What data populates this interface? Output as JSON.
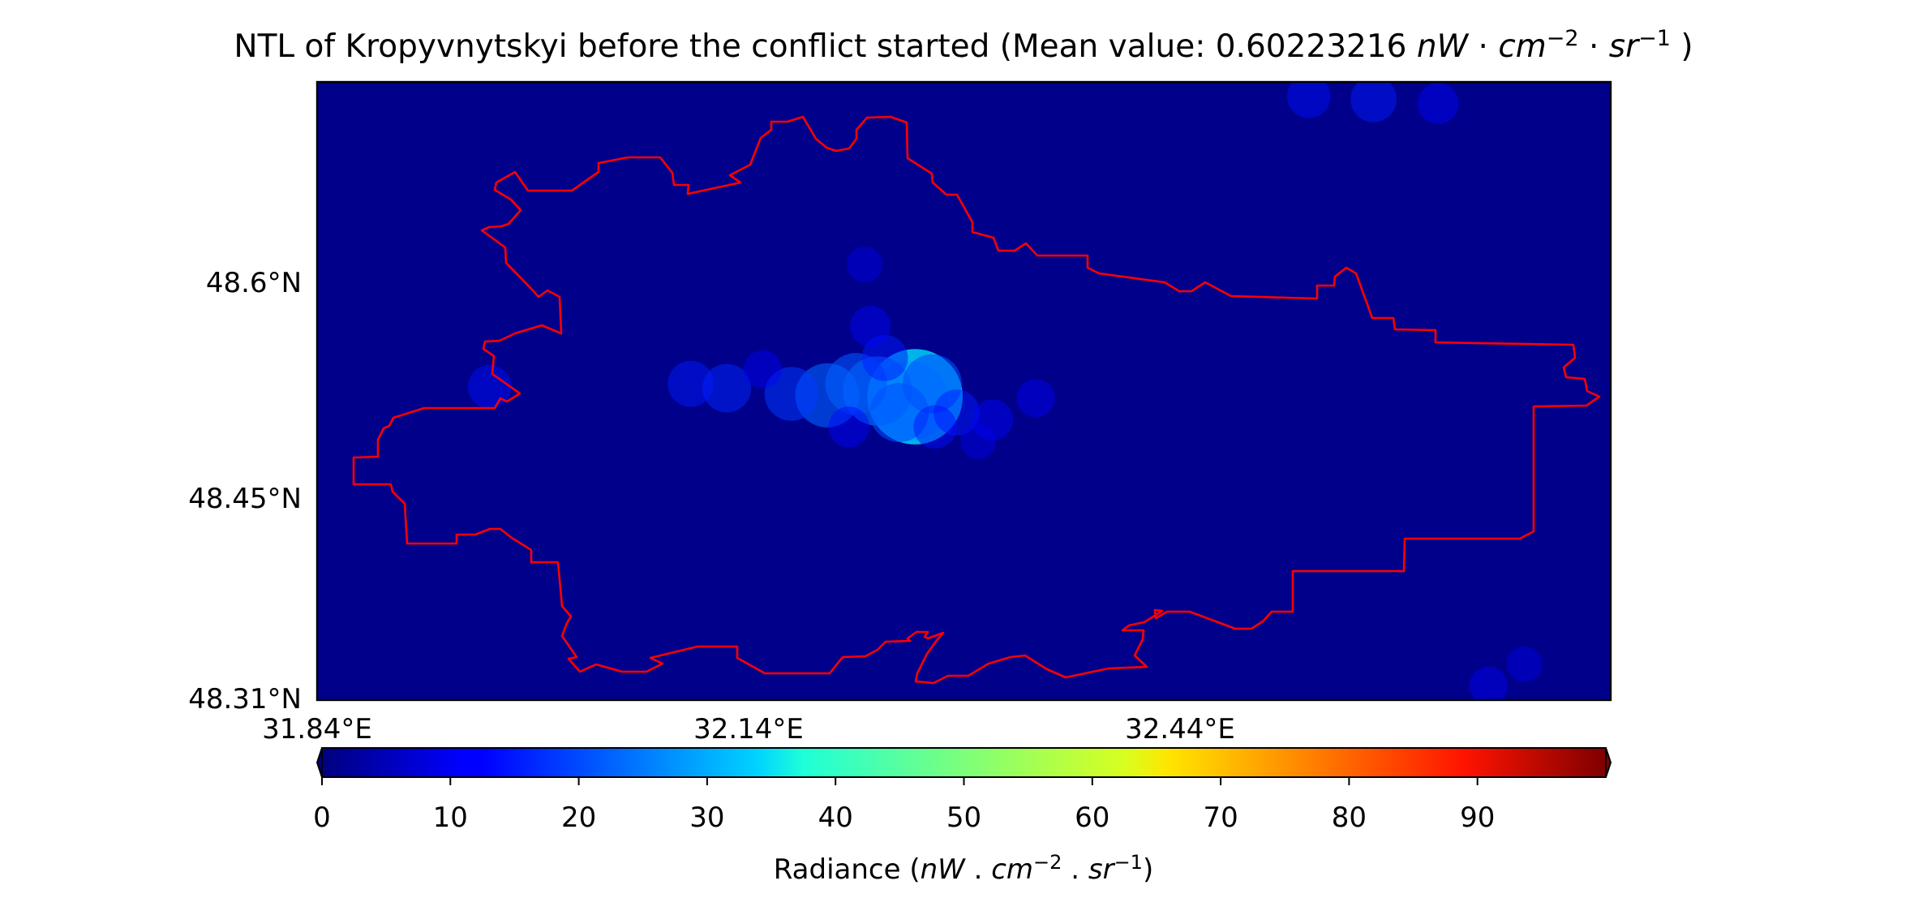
{
  "title": {
    "prefix": "NTL of Kropyvnytskyi before the conflict started (Mean value: 0.60223216 ",
    "unit_nW": "nW",
    "dot1": " · ",
    "unit_cm": "cm",
    "cm_exp": "−2",
    "dot2": " · ",
    "unit_sr": "sr",
    "sr_exp": "−1",
    "suffix": " )"
  },
  "map": {
    "background_color": "#00008a",
    "boundary_color": "#ff0000",
    "lon_ticks": [
      {
        "label": "31.84°E",
        "lon": 31.84
      },
      {
        "label": "32.14°E",
        "lon": 32.14
      },
      {
        "label": "32.44°E",
        "lon": 32.44
      }
    ],
    "lat_ticks": [
      {
        "label": "48.6°N",
        "lat": 48.6
      },
      {
        "label": "48.45°N",
        "lat": 48.45
      },
      {
        "label": "48.31°N",
        "lat": 48.31
      }
    ],
    "lon_range": [
      31.84,
      32.74
    ],
    "lat_range": [
      48.31,
      48.74
    ],
    "lights": [
      {
        "lon": 32.256,
        "lat": 48.521,
        "value": 28
      },
      {
        "lon": 32.252,
        "lat": 48.518,
        "value": 22
      },
      {
        "lon": 32.23,
        "lat": 48.525,
        "value": 18
      },
      {
        "lon": 32.215,
        "lat": 48.53,
        "value": 15
      },
      {
        "lon": 32.195,
        "lat": 48.522,
        "value": 16
      },
      {
        "lon": 32.245,
        "lat": 48.51,
        "value": 14
      },
      {
        "lon": 32.268,
        "lat": 48.53,
        "value": 14
      },
      {
        "lon": 32.17,
        "lat": 48.523,
        "value": 12
      },
      {
        "lon": 32.125,
        "lat": 48.527,
        "value": 10
      },
      {
        "lon": 32.1,
        "lat": 48.53,
        "value": 9
      },
      {
        "lon": 32.235,
        "lat": 48.548,
        "value": 9
      },
      {
        "lon": 32.225,
        "lat": 48.57,
        "value": 7
      },
      {
        "lon": 32.285,
        "lat": 48.51,
        "value": 9
      },
      {
        "lon": 32.31,
        "lat": 48.505,
        "value": 7
      },
      {
        "lon": 32.27,
        "lat": 48.5,
        "value": 8
      },
      {
        "lon": 32.21,
        "lat": 48.5,
        "value": 7
      },
      {
        "lon": 32.34,
        "lat": 48.52,
        "value": 6
      },
      {
        "lon": 31.96,
        "lat": 48.528,
        "value": 8
      },
      {
        "lon": 32.53,
        "lat": 48.73,
        "value": 8
      },
      {
        "lon": 32.575,
        "lat": 48.728,
        "value": 9
      },
      {
        "lon": 32.62,
        "lat": 48.725,
        "value": 7
      },
      {
        "lon": 32.655,
        "lat": 48.32,
        "value": 6
      },
      {
        "lon": 32.68,
        "lat": 48.335,
        "value": 5
      },
      {
        "lon": 32.221,
        "lat": 48.613,
        "value": 5
      },
      {
        "lon": 32.15,
        "lat": 48.54,
        "value": 6
      },
      {
        "lon": 32.3,
        "lat": 48.49,
        "value": 5
      }
    ]
  },
  "colorbar": {
    "ticks": [
      "0",
      "10",
      "20",
      "30",
      "40",
      "50",
      "60",
      "70",
      "80",
      "90"
    ],
    "tick_values": [
      0,
      10,
      20,
      30,
      40,
      50,
      60,
      70,
      80,
      90
    ],
    "vmin": 0,
    "vmax": 100,
    "colormap": "jet",
    "extend": "both",
    "label": {
      "prefix": "Radiance (",
      "unit_nW": "nW",
      "sep1": " . ",
      "unit_cm": "cm",
      "cm_exp": "−2",
      "sep2": " . ",
      "unit_sr": "sr",
      "sr_exp": "−1",
      "suffix": ")"
    }
  }
}
